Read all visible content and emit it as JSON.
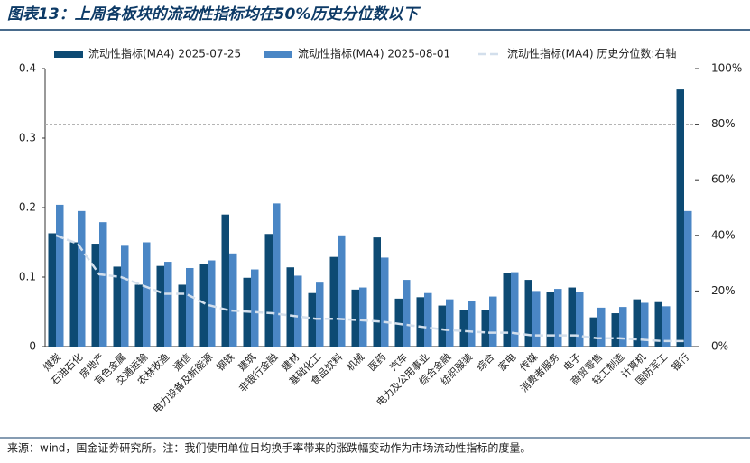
{
  "chart_data": {
    "type": "bar",
    "title": "图表13：上周各板块的流动性指标均在50%历史分位数以下",
    "source": "来源：wind，国金证券研究所。注：我们使用单位日均换手率带来的涨跌幅变动作为市场流动性指标的度量。",
    "categories": [
      "煤炭",
      "石油石化",
      "房地产",
      "有色金属",
      "交通运输",
      "农林牧渔",
      "通信",
      "电力设备及新能源",
      "钢铁",
      "建筑",
      "非银行金融",
      "建材",
      "基础化工",
      "食品饮料",
      "机械",
      "医药",
      "汽车",
      "电力及公用事业",
      "综合金融",
      "纺织服装",
      "综合",
      "家电",
      "传媒",
      "消费者服务",
      "电子",
      "商贸零售",
      "轻工制造",
      "计算机",
      "国防军工",
      "银行"
    ],
    "series": [
      {
        "name": "流动性指标(MA4) 2025-07-25",
        "color": "#0d4a73",
        "values": [
          0.163,
          0.15,
          0.148,
          0.115,
          0.089,
          0.116,
          0.089,
          0.119,
          0.19,
          0.099,
          0.162,
          0.114,
          0.077,
          0.129,
          0.082,
          0.157,
          0.069,
          0.071,
          0.059,
          0.053,
          0.052,
          0.106,
          0.096,
          0.078,
          0.085,
          0.042,
          0.048,
          0.068,
          0.064,
          0.37
        ]
      },
      {
        "name": "流动性指标(MA4) 2025-08-01",
        "color": "#4a86c5",
        "values": [
          0.204,
          0.195,
          0.179,
          0.145,
          0.15,
          0.122,
          0.113,
          0.124,
          0.134,
          0.111,
          0.206,
          0.102,
          0.092,
          0.16,
          0.085,
          0.128,
          0.096,
          0.077,
          0.068,
          0.066,
          0.072,
          0.107,
          0.08,
          0.083,
          0.079,
          0.056,
          0.057,
          0.063,
          0.058,
          0.195
        ]
      },
      {
        "name": "流动性指标(MA4) 历史分位数:右轴",
        "color": "#d3dfec",
        "axis": "y2",
        "values": [
          40,
          37,
          26,
          25,
          22,
          19,
          19,
          15,
          13,
          12.5,
          12,
          11,
          10,
          10,
          9.5,
          9,
          8,
          7,
          6,
          5.5,
          5,
          5,
          4,
          4,
          4,
          3,
          3,
          2.5,
          2,
          2
        ]
      }
    ],
    "ylim": [
      0,
      0.4
    ],
    "yticks": [
      0,
      0.1,
      0.2,
      0.3,
      0.4
    ],
    "y2lim": [
      0,
      100
    ],
    "y2ticks": [
      {
        "value": 0,
        "label": "0%"
      },
      {
        "value": 20,
        "label": "20%"
      },
      {
        "value": 40,
        "label": "40%"
      },
      {
        "value": 60,
        "label": "60%"
      },
      {
        "value": 80,
        "label": "80%"
      },
      {
        "value": 100,
        "label": "100%"
      }
    ],
    "reference_line": {
      "axis": "y2",
      "value": 80,
      "color": "#aaaaaa"
    }
  }
}
